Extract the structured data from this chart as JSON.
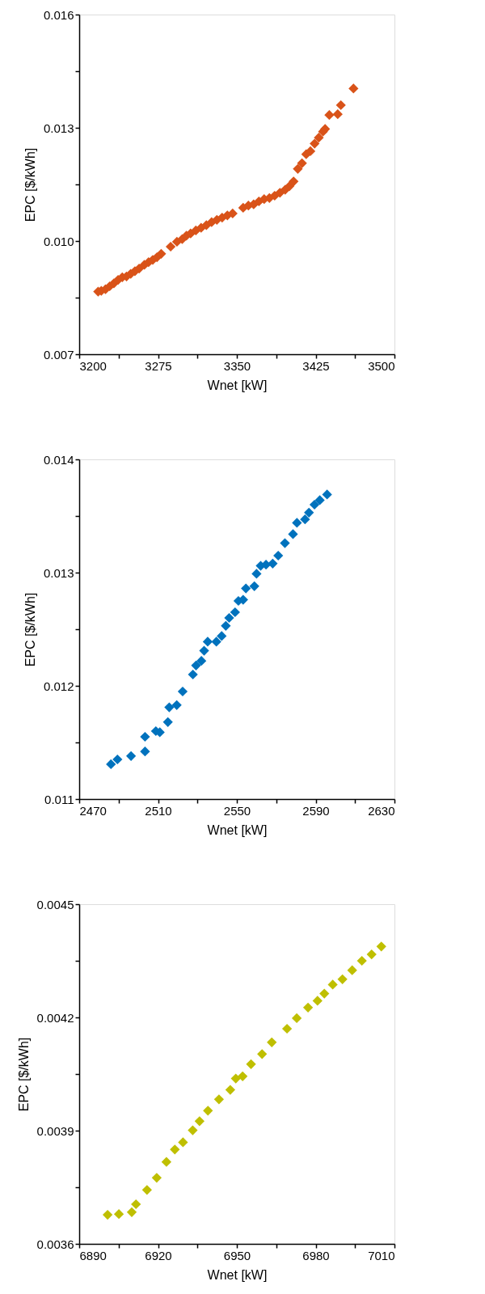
{
  "chart_data": [
    {
      "type": "scatter",
      "xlabel": "Wnet [kW]",
      "ylabel": "EPC [$/kWh]",
      "marker": "diamond",
      "grid": false,
      "xlim": [
        3200,
        3500
      ],
      "ylim": [
        0.007,
        0.016
      ],
      "xticks": [
        3200,
        {
          "value": 3237.5,
          "label": null
        },
        3275,
        {
          "value": 3312.5,
          "label": null
        },
        3350,
        {
          "value": 3387.5,
          "label": null
        },
        3425,
        {
          "value": 3462.5,
          "label": null
        },
        3500
      ],
      "yticks": [
        0.007,
        {
          "value": 0.0085,
          "label": null
        },
        {
          "value": 0.01,
          "label": "0.010"
        },
        {
          "value": 0.0115,
          "label": null
        },
        0.013,
        {
          "value": 0.0145,
          "label": null
        },
        0.016
      ],
      "series": [
        {
          "color": "#d95319",
          "x": [
            3218,
            3221,
            3225,
            3229,
            3233,
            3237,
            3241,
            3245,
            3249,
            3253,
            3257,
            3262,
            3266,
            3270,
            3274,
            3278,
            3287,
            3293,
            3298,
            3302,
            3306,
            3311,
            3316,
            3321,
            3326,
            3331,
            3336,
            3341,
            3346,
            3356,
            3361,
            3366,
            3371,
            3376,
            3381,
            3386,
            3391,
            3396,
            3400,
            3404,
            3408,
            3412,
            3416,
            3420,
            3424,
            3428,
            3432,
            3434,
            3438,
            3446,
            3449,
            3461
          ],
          "values": [
            0.00866,
            0.00868,
            0.00872,
            0.0088,
            0.00888,
            0.00897,
            0.00904,
            0.00906,
            0.00913,
            0.0092,
            0.00927,
            0.00937,
            0.00944,
            0.0095,
            0.00957,
            0.00966,
            0.00985,
            0.00998,
            0.01005,
            0.01014,
            0.0102,
            0.01028,
            0.01035,
            0.01042,
            0.0105,
            0.01056,
            0.01062,
            0.01068,
            0.01073,
            0.01088,
            0.01094,
            0.01097,
            0.01105,
            0.01111,
            0.01114,
            0.0112,
            0.01128,
            0.01136,
            0.01145,
            0.01158,
            0.01191,
            0.01206,
            0.0123,
            0.01238,
            0.01258,
            0.01274,
            0.0129,
            0.01297,
            0.01334,
            0.01336,
            0.0136,
            0.01404
          ]
        }
      ]
    },
    {
      "type": "scatter",
      "xlabel": "Wnet [kW]",
      "ylabel": "EPC [$/kWh]",
      "marker": "diamond",
      "grid": false,
      "xlim": [
        2470,
        2630
      ],
      "ylim": [
        0.011,
        0.014
      ],
      "xticks": [
        2470,
        {
          "value": 2490,
          "label": null
        },
        2510,
        {
          "value": 2530,
          "label": null
        },
        2550,
        {
          "value": 2570,
          "label": null
        },
        2590,
        {
          "value": 2610,
          "label": null
        },
        2630
      ],
      "yticks": [
        0.011,
        {
          "value": 0.0115,
          "label": null
        },
        0.012,
        {
          "value": 0.0125,
          "label": null
        },
        0.013,
        {
          "value": 0.0135,
          "label": null
        },
        0.014
      ],
      "series": [
        {
          "color": "#0072bd",
          "x": [
            2486.1,
            2489.4,
            2496.3,
            2503.4,
            2503.4,
            2508.9,
            2510.9,
            2515,
            2515.7,
            2519.5,
            2522.5,
            2527.7,
            2529.3,
            2532,
            2533.4,
            2535.2,
            2539.6,
            2542.3,
            2544.4,
            2546.1,
            2549.1,
            2550.8,
            2553.2,
            2554.6,
            2558.9,
            2560,
            2562.1,
            2564.8,
            2568.2,
            2571,
            2574.4,
            2578.5,
            2580.5,
            2584.6,
            2586.6,
            2589.4,
            2592.1,
            2595.8
          ],
          "values": [
            0.011308,
            0.01135,
            0.01138,
            0.01142,
            0.01155,
            0.0116,
            0.01159,
            0.01168,
            0.01181,
            0.01183,
            0.01195,
            0.0121,
            0.01218,
            0.01222,
            0.01231,
            0.01239,
            0.01239,
            0.01244,
            0.01253,
            0.0126,
            0.01265,
            0.01275,
            0.01276,
            0.01286,
            0.01288,
            0.01299,
            0.01306,
            0.01307,
            0.01308,
            0.01315,
            0.01326,
            0.01334,
            0.01344,
            0.01347,
            0.01353,
            0.0136,
            0.01364,
            0.01369
          ]
        }
      ]
    },
    {
      "type": "scatter",
      "xlabel": "Wnet [kW]",
      "ylabel": "EPC [$/kWh]",
      "marker": "diamond",
      "grid": false,
      "xlim": [
        6890,
        7010
      ],
      "ylim": [
        0.0036,
        0.0045
      ],
      "xticks": [
        6890,
        {
          "value": 6905,
          "label": null
        },
        6920,
        {
          "value": 6935,
          "label": null
        },
        6950,
        {
          "value": 6965,
          "label": null
        },
        6980,
        {
          "value": 6995,
          "label": null
        },
        7010
      ],
      "yticks": [
        0.0036,
        {
          "value": 0.00375,
          "label": null
        },
        0.0039,
        {
          "value": 0.00405,
          "label": null
        },
        0.0042,
        {
          "value": 0.00435,
          "label": null
        },
        0.0045
      ],
      "series": [
        {
          "color": "#bfbf00",
          "x": [
            6900.8,
            6905.1,
            6910,
            6911.6,
            6915.8,
            6919.5,
            6923.2,
            6926.4,
            6929.5,
            6933.2,
            6935.8,
            6939,
            6943.2,
            6947.5,
            6949.6,
            6952.2,
            6955.4,
            6959.6,
            6963.3,
            6969.1,
            6972.8,
            6977.1,
            6980.7,
            6983.3,
            6986.5,
            6990.2,
            6993.9,
            6997.6,
            7001.3,
            7005
          ],
          "values": [
            0.003677,
            0.003679,
            0.003684,
            0.003705,
            0.003743,
            0.003775,
            0.003817,
            0.00385,
            0.003869,
            0.003901,
            0.003925,
            0.003953,
            0.003983,
            0.004008,
            0.004038,
            0.004044,
            0.004076,
            0.004103,
            0.004134,
            0.00417,
            0.004198,
            0.004226,
            0.004244,
            0.004263,
            0.004287,
            0.004301,
            0.004325,
            0.00435,
            0.004367,
            0.004388
          ]
        }
      ]
    }
  ]
}
